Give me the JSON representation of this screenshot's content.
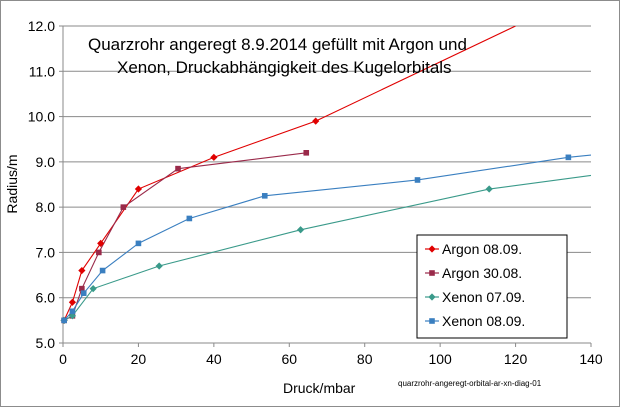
{
  "chart_data": {
    "type": "line",
    "title_lines": [
      "Quarzrohr angeregt   8.9.2014  gefüllt mit Argon und",
      "Xenon, Druckabhängigkeit des Kugelorbitals"
    ],
    "xlabel": "Druck/mbar",
    "ylabel": "Radius/m",
    "xlim": [
      0,
      140
    ],
    "ylim": [
      5.0,
      12.0
    ],
    "x_ticks": [
      0,
      20,
      40,
      60,
      80,
      100,
      120,
      140
    ],
    "y_ticks": [
      "5.0",
      "6.0",
      "7.0",
      "8.0",
      "9.0",
      "10.0",
      "11.0",
      "12.0"
    ],
    "grid": true,
    "legend_position": "bottom-right",
    "footnote": "quarzrohr-angeregt-orbital-ar-xn-diag-01",
    "series": [
      {
        "name": "Argon 08.09.",
        "color": "#e00000",
        "marker": "diamond",
        "points": [
          [
            0.3,
            5.5
          ],
          [
            2.5,
            5.9
          ],
          [
            5,
            6.6
          ],
          [
            10,
            7.2
          ],
          [
            20,
            8.4
          ],
          [
            40,
            9.1
          ],
          [
            67,
            9.9
          ]
        ],
        "trend": [
          [
            0.3,
            5.5
          ],
          [
            2.5,
            5.9
          ],
          [
            5,
            6.6
          ],
          [
            10,
            7.2
          ],
          [
            20,
            8.4
          ],
          [
            40,
            9.1
          ],
          [
            67,
            9.9
          ],
          [
            120,
            12.0
          ]
        ]
      },
      {
        "name": "Argon 30.08.",
        "color": "#9a2a4a",
        "marker": "square",
        "points": [
          [
            0.3,
            5.5
          ],
          [
            2.5,
            5.6
          ],
          [
            5,
            6.2
          ],
          [
            9.5,
            7.0
          ],
          [
            16,
            8.0
          ],
          [
            30.5,
            8.85
          ],
          [
            64.5,
            9.2
          ]
        ],
        "trend": [
          [
            0.3,
            5.5
          ],
          [
            2.5,
            5.6
          ],
          [
            5,
            6.2
          ],
          [
            9.5,
            7.0
          ],
          [
            16,
            8.0
          ],
          [
            30.5,
            8.85
          ],
          [
            64.5,
            9.2
          ]
        ]
      },
      {
        "name": "Xenon 07.09.",
        "color": "#3a9a8a",
        "marker": "diamond",
        "points": [
          [
            0.3,
            5.5
          ],
          [
            2.5,
            5.6
          ],
          [
            8,
            6.2
          ],
          [
            25.5,
            6.7
          ],
          [
            63,
            7.5
          ],
          [
            113,
            8.4
          ]
        ],
        "trend": [
          [
            0.3,
            5.5
          ],
          [
            2.5,
            5.6
          ],
          [
            8,
            6.2
          ],
          [
            25.5,
            6.7
          ],
          [
            63,
            7.5
          ],
          [
            113,
            8.4
          ],
          [
            140,
            8.7
          ]
        ]
      },
      {
        "name": "Xenon 08.09.",
        "color": "#3a7fc0",
        "marker": "square",
        "points": [
          [
            0.3,
            5.5
          ],
          [
            2.5,
            5.7
          ],
          [
            5.5,
            6.1
          ],
          [
            10.5,
            6.6
          ],
          [
            20,
            7.2
          ],
          [
            33.5,
            7.75
          ],
          [
            53.5,
            8.25
          ],
          [
            94,
            8.6
          ],
          [
            134,
            9.1
          ]
        ],
        "trend": [
          [
            0.3,
            5.5
          ],
          [
            2.5,
            5.7
          ],
          [
            5.5,
            6.1
          ],
          [
            10.5,
            6.6
          ],
          [
            20,
            7.2
          ],
          [
            33.5,
            7.75
          ],
          [
            53.5,
            8.25
          ],
          [
            94,
            8.6
          ],
          [
            134,
            9.1
          ],
          [
            140,
            9.15
          ]
        ]
      }
    ]
  }
}
